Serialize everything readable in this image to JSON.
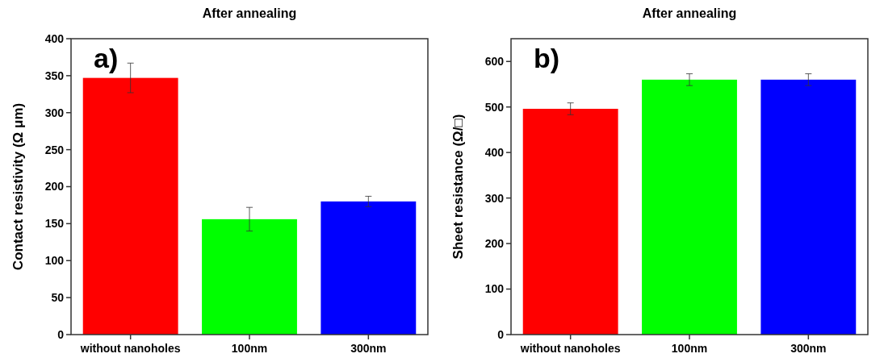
{
  "chart_data": [
    {
      "type": "bar",
      "title": "After annealing",
      "ylabel": "Contact resistivity (Ω μm)",
      "categories": [
        "without nanoholes",
        "100nm",
        "300nm"
      ],
      "values": [
        347,
        156,
        180
      ],
      "colors": [
        "#ff0000",
        "#00ff00",
        "#0000ff"
      ],
      "errors": [
        20,
        16,
        7
      ],
      "ylim": [
        0,
        400
      ],
      "yticks": [
        0,
        50,
        100,
        150,
        200,
        250,
        300,
        350,
        400
      ],
      "annotations": [
        "a)"
      ]
    },
    {
      "type": "bar",
      "title": "After annealing",
      "ylabel": "Sheet resistance (Ω/□)",
      "categories": [
        "without nanoholes",
        "100nm",
        "300nm"
      ],
      "values": [
        496,
        560,
        560
      ],
      "colors": [
        "#ff0000",
        "#00ff00",
        "#0000ff"
      ],
      "errors": [
        13,
        13,
        13
      ],
      "ylim": [
        0,
        650
      ],
      "yticks": [
        0,
        100,
        200,
        300,
        400,
        500,
        600
      ],
      "annotations": [
        "b)"
      ]
    }
  ]
}
